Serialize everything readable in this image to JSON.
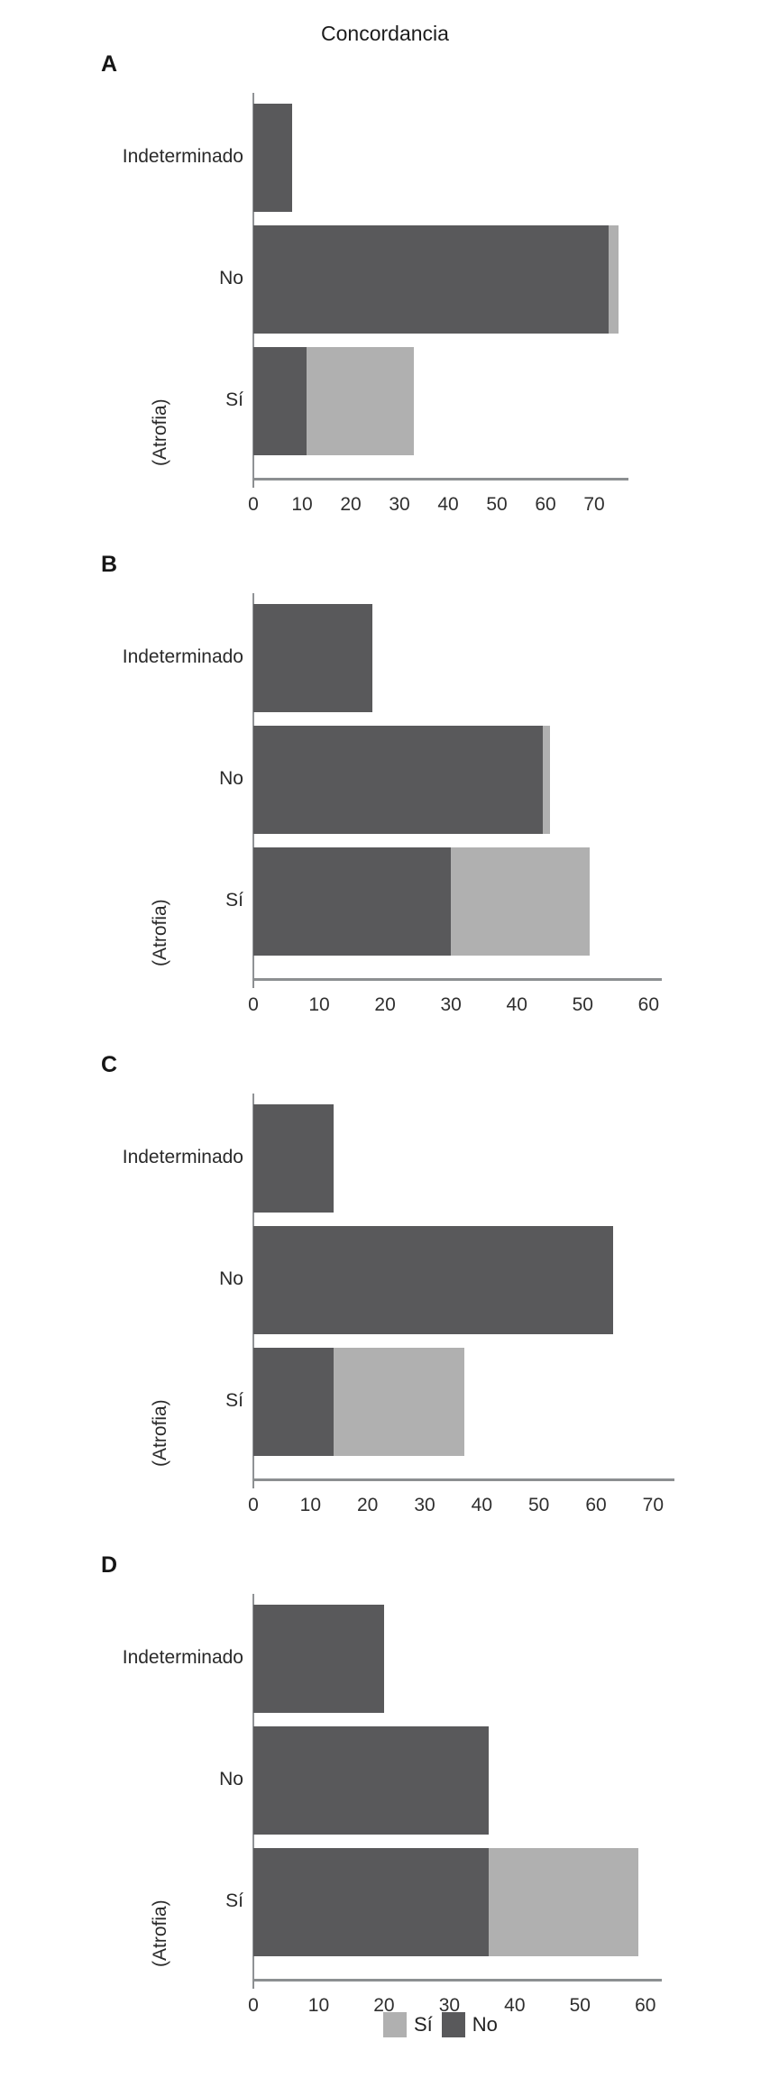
{
  "title": "Concordancia",
  "ylabel": "(Atrofia)",
  "colors": {
    "no_dark": "#59595b",
    "si_light": "#b0b0b0",
    "axis": "#8c8f91",
    "text": "#2a2a2a"
  },
  "legend": [
    {
      "label": "Sí",
      "color_key": "si_light"
    },
    {
      "label": "No",
      "color_key": "no_dark"
    }
  ],
  "chart_data": [
    {
      "panel": "A",
      "type": "bar",
      "orientation": "horizontal",
      "stacked": true,
      "categories": [
        "Indeterminado",
        "No",
        "Sí"
      ],
      "series": [
        {
          "name": "No",
          "color_key": "no_dark",
          "values": [
            8,
            73,
            11
          ]
        },
        {
          "name": "Sí",
          "color_key": "si_light",
          "values": [
            0,
            2,
            22
          ]
        }
      ],
      "xticks": [
        0,
        10,
        20,
        30,
        40,
        50,
        60,
        70
      ],
      "xlim": [
        0,
        75
      ],
      "grid": false,
      "legend_position": "none"
    },
    {
      "panel": "B",
      "type": "bar",
      "orientation": "horizontal",
      "stacked": true,
      "categories": [
        "Indeterminado",
        "No",
        "Sí"
      ],
      "series": [
        {
          "name": "No",
          "color_key": "no_dark",
          "values": [
            18,
            44,
            30
          ]
        },
        {
          "name": "Sí",
          "color_key": "si_light",
          "values": [
            0,
            1,
            21
          ]
        }
      ],
      "xticks": [
        0,
        10,
        20,
        30,
        40,
        50,
        60
      ],
      "xlim": [
        0,
        60.5
      ],
      "grid": false,
      "legend_position": "none"
    },
    {
      "panel": "C",
      "type": "bar",
      "orientation": "horizontal",
      "stacked": true,
      "categories": [
        "Indeterminado",
        "No",
        "Sí"
      ],
      "series": [
        {
          "name": "No",
          "color_key": "no_dark",
          "values": [
            14,
            63,
            14
          ]
        },
        {
          "name": "Sí",
          "color_key": "si_light",
          "values": [
            0,
            0,
            23
          ]
        }
      ],
      "xticks": [
        0,
        10,
        20,
        30,
        40,
        50,
        60,
        70
      ],
      "xlim": [
        0,
        72
      ],
      "grid": false,
      "legend_position": "none"
    },
    {
      "panel": "D",
      "type": "bar",
      "orientation": "horizontal",
      "stacked": true,
      "categories": [
        "Indeterminado",
        "No",
        "Sí"
      ],
      "series": [
        {
          "name": "No",
          "color_key": "no_dark",
          "values": [
            20,
            36,
            36
          ]
        },
        {
          "name": "Sí",
          "color_key": "si_light",
          "values": [
            0,
            0,
            23
          ]
        }
      ],
      "xticks": [
        0,
        10,
        20,
        30,
        40,
        50,
        60
      ],
      "xlim": [
        0,
        61
      ],
      "grid": false,
      "legend_position": "bottom"
    }
  ]
}
